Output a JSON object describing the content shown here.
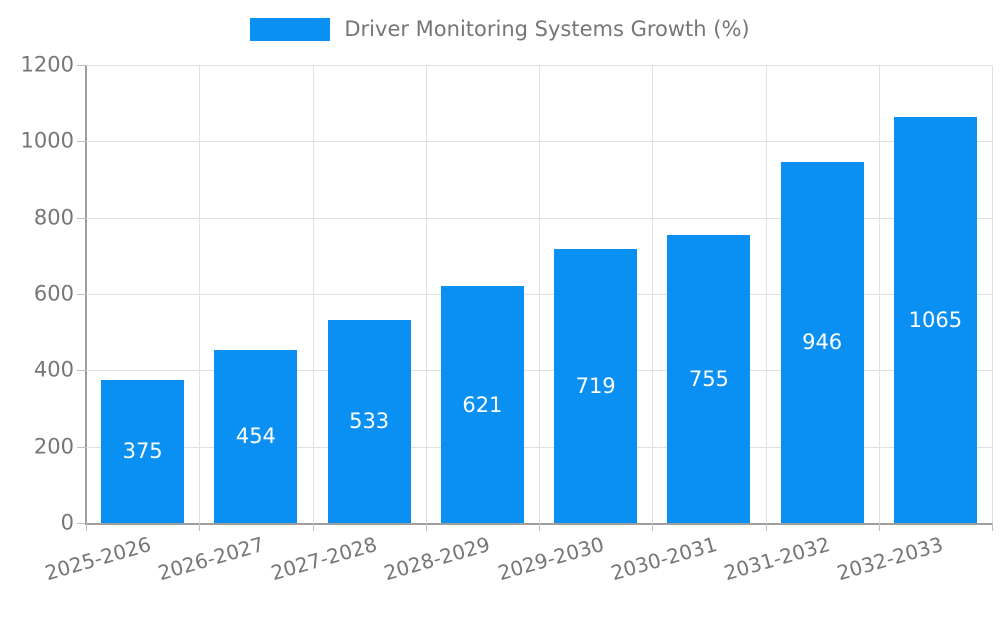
{
  "legend": {
    "label": "Driver Monitoring Systems Growth (%)"
  },
  "chart_data": {
    "type": "bar",
    "title": "Driver Monitoring Systems Growth (%)",
    "categories": [
      "2025-2026",
      "2026-2027",
      "2027-2028",
      "2028-2029",
      "2029-2030",
      "2030-2031",
      "2031-2032",
      "2032-2033"
    ],
    "values": [
      375,
      454,
      533,
      621,
      719,
      755,
      946,
      1065
    ],
    "xlabel": "",
    "ylabel": "",
    "ylim": [
      0,
      1200
    ],
    "yticks": [
      0,
      200,
      400,
      600,
      800,
      1000,
      1200
    ],
    "grid": true,
    "legend_position": "top-center",
    "bar_labels_inside": true,
    "colors": {
      "bar": "#0a90f3",
      "bar_label": "#ffffff",
      "axis_text": "#767676",
      "grid_line": "#e0e0e0",
      "axis_line": "#9e9e9e",
      "tick": "#c0c0c0"
    }
  }
}
